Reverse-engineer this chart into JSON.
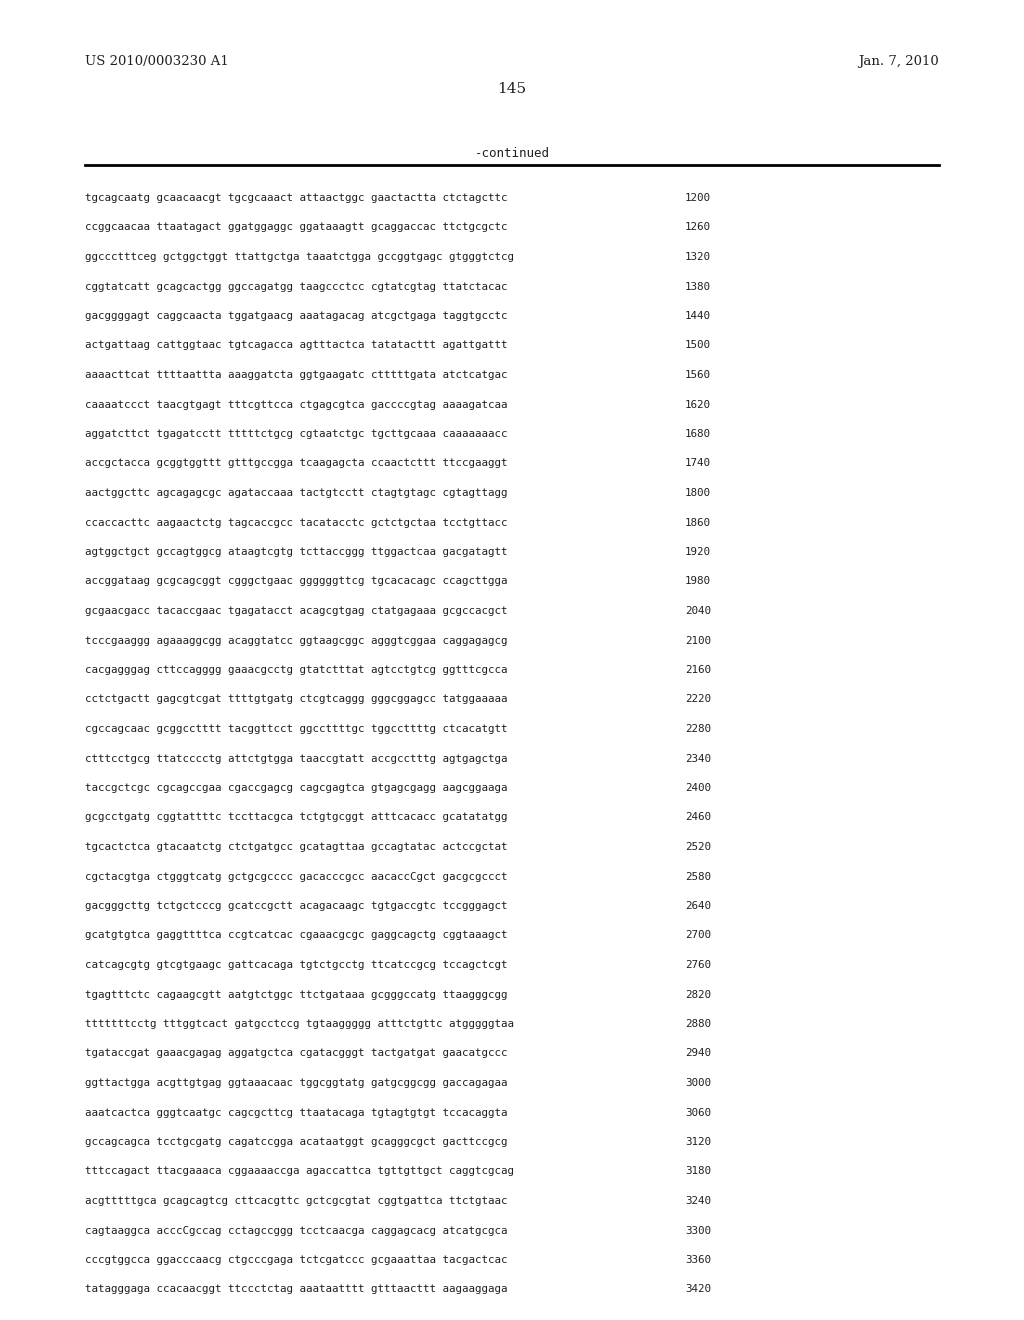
{
  "header_left": "US 2010/0003230 A1",
  "header_right": "Jan. 7, 2010",
  "page_number": "145",
  "continued_label": "-continued",
  "background_color": "#ffffff",
  "text_color": "#231f20",
  "sequence_lines": [
    [
      "tgcagcaatg gcaacaacgt tgcgcaaact attaactggc gaactactta ctctagcttc",
      "1200"
    ],
    [
      "ccggcaacaa ttaatagact ggatggaggc ggataaagtt gcaggaccac ttctgcgctc",
      "1260"
    ],
    [
      "ggccctttceg gctggctggt ttattgctga taaatctgga gccggtgagc gtgggtctcg",
      "1320"
    ],
    [
      "cggtatcatt gcagcactgg ggccagatgg taagccctcc cgtatcgtag ttatctacac",
      "1380"
    ],
    [
      "gacggggagt caggcaacta tggatgaacg aaatagacag atcgctgaga taggtgcctc",
      "1440"
    ],
    [
      "actgattaag cattggtaac tgtcagacca agtttactca tatatacttt agattgattt",
      "1500"
    ],
    [
      "aaaacttcat ttttaattta aaaggatcta ggtgaagatc ctttttgata atctcatgac",
      "1560"
    ],
    [
      "caaaatccct taacgtgagt tttcgttcca ctgagcgtca gaccccgtag aaaagatcaa",
      "1620"
    ],
    [
      "aggatcttct tgagatcctt tttttctgcg cgtaatctgc tgcttgcaaa caaaaaaacc",
      "1680"
    ],
    [
      "accgctacca gcggtggttt gtttgccgga tcaagagcta ccaactcttt ttccgaaggt",
      "1740"
    ],
    [
      "aactggcttc agcagagcgc agataccaaa tactgtcctt ctagtgtagc cgtagttagg",
      "1800"
    ],
    [
      "ccaccacttc aagaactctg tagcaccgcc tacatacctc gctctgctaa tcctgttacc",
      "1860"
    ],
    [
      "agtggctgct gccagtggcg ataagtcgtg tcttaccggg ttggactcaa gacgatagtt",
      "1920"
    ],
    [
      "accggataag gcgcagcggt cgggctgaac ggggggttcg tgcacacagc ccagcttgga",
      "1980"
    ],
    [
      "gcgaacgacc tacaccgaac tgagatacct acagcgtgag ctatgagaaa gcgccacgct",
      "2040"
    ],
    [
      "tcccgaaggg agaaaggcgg acaggtatcc ggtaagcggc agggtcggaa caggagagcg",
      "2100"
    ],
    [
      "cacgagggag cttccagggg gaaacgcctg gtatctttat agtcctgtcg ggtttcgcca",
      "2160"
    ],
    [
      "cctctgactt gagcgtcgat ttttgtgatg ctcgtcaggg gggcggagcc tatggaaaaa",
      "2220"
    ],
    [
      "cgccagcaac gcggcctttt tacggttcct ggccttttgc tggccttttg ctcacatgtt",
      "2280"
    ],
    [
      "ctttcctgcg ttatcccctg attctgtgga taaccgtatt accgcctttg agtgagctga",
      "2340"
    ],
    [
      "taccgctcgc cgcagccgaa cgaccgagcg cagcgagtca gtgagcgagg aagcggaaga",
      "2400"
    ],
    [
      "gcgcctgatg cggtattttc tccttacgca tctgtgcggt atttcacacc gcatatatgg",
      "2460"
    ],
    [
      "tgcactctca gtacaatctg ctctgatgcc gcatagttaa gccagtatac actccgctat",
      "2520"
    ],
    [
      "cgctacgtga ctgggtcatg gctgcgcccc gacacccgcc aacaccCgct gacgcgccct",
      "2580"
    ],
    [
      "gacgggcttg tctgctcccg gcatccgctt acagacaagc tgtgaccgtc tccgggagct",
      "2640"
    ],
    [
      "gcatgtgtca gaggttttca ccgtcatcac cgaaacgcgc gaggcagctg cggtaaagct",
      "2700"
    ],
    [
      "catcagcgtg gtcgtgaagc gattcacaga tgtctgcctg ttcatccgcg tccagctcgt",
      "2760"
    ],
    [
      "tgagtttctc cagaagcgtt aatgtctggc ttctgataaa gcgggccatg ttaagggcgg",
      "2820"
    ],
    [
      "tttttttcctg tttggtcact gatgcctccg tgtaaggggg atttctgttc atgggggtaa",
      "2880"
    ],
    [
      "tgataccgat gaaacgagag aggatgctca cgatacgggt tactgatgat gaacatgccc",
      "2940"
    ],
    [
      "ggttactgga acgttgtgag ggtaaacaac tggcggtatg gatgcggcgg gaccagagaa",
      "3000"
    ],
    [
      "aaatcactca gggtcaatgc cagcgcttcg ttaatacaga tgtagtgtgt tccacaggta",
      "3060"
    ],
    [
      "gccagcagca tcctgcgatg cagatccgga acataatggt gcagggcgct gacttccgcg",
      "3120"
    ],
    [
      "tttccagact ttacgaaaca cggaaaaccga agaccattca tgttgttgct caggtcgcag",
      "3180"
    ],
    [
      "acgtttttgca gcagcagtcg cttcacgttc gctcgcgtat cggtgattca ttctgtaac",
      "3240"
    ],
    [
      "cagtaaggca acccCgccag cctagccggg tcctcaacga caggagcacg atcatgcgca",
      "3300"
    ],
    [
      "cccgtggcca ggacccaacg ctgcccgaga tctcgatccc gcgaaattaa tacgactcac",
      "3360"
    ],
    [
      "tatagggaga ccacaacggt ttccctctag aaataatttt gtttaacttt aagaaggaga",
      "3420"
    ]
  ]
}
